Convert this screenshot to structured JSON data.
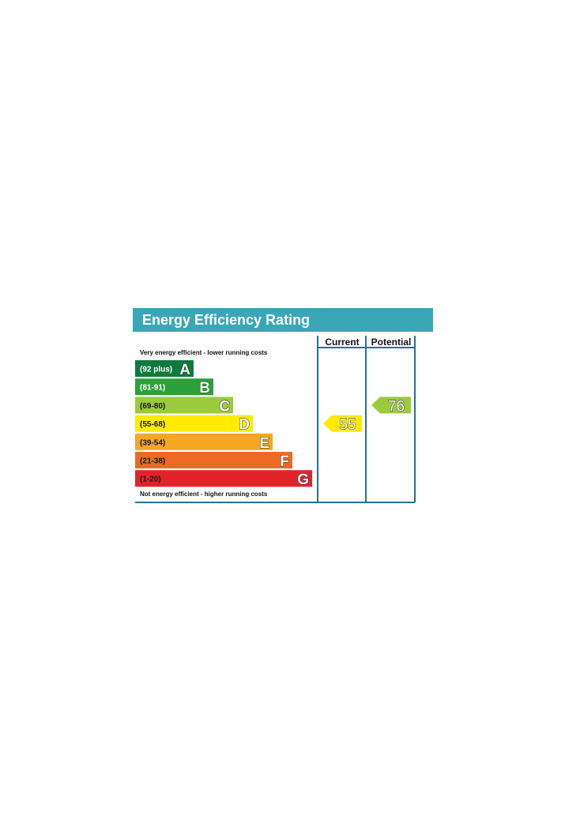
{
  "chart_data": {
    "type": "bar",
    "title": "Energy Efficiency Rating",
    "columns": [
      "Current",
      "Potential"
    ],
    "top_note": "Very energy efficient - lower running costs",
    "bottom_note": "Not energy efficient - higher running costs",
    "bands": [
      {
        "letter": "A",
        "range": "(92 plus)",
        "min": 92,
        "max": 100,
        "color": "#0f7a3c",
        "text_color": "#ffffff"
      },
      {
        "letter": "B",
        "range": "(81-91)",
        "min": 81,
        "max": 91,
        "color": "#2ca13a",
        "text_color": "#ffffff"
      },
      {
        "letter": "C",
        "range": "(69-80)",
        "min": 69,
        "max": 80,
        "color": "#9bcb3c",
        "text_color": "#1a1a1a"
      },
      {
        "letter": "D",
        "range": "(55-68)",
        "min": 55,
        "max": 68,
        "color": "#ffea00",
        "text_color": "#1a1a1a"
      },
      {
        "letter": "E",
        "range": "(39-54)",
        "min": 39,
        "max": 54,
        "color": "#f5a623",
        "text_color": "#1a1a1a"
      },
      {
        "letter": "F",
        "range": "(21-38)",
        "min": 21,
        "max": 38,
        "color": "#ec6a24",
        "text_color": "#1a1a1a"
      },
      {
        "letter": "G",
        "range": "(1-20)",
        "min": 1,
        "max": 20,
        "color": "#e2232a",
        "text_color": "#1a1a1a"
      }
    ],
    "current": {
      "value": 55,
      "band": "D",
      "color": "#ffea00"
    },
    "potential": {
      "value": 76,
      "band": "C",
      "color": "#9bcb3c"
    }
  },
  "colors": {
    "header": "#3aa7b7",
    "frame": "#1f7691",
    "header_text": "#ffffff"
  }
}
